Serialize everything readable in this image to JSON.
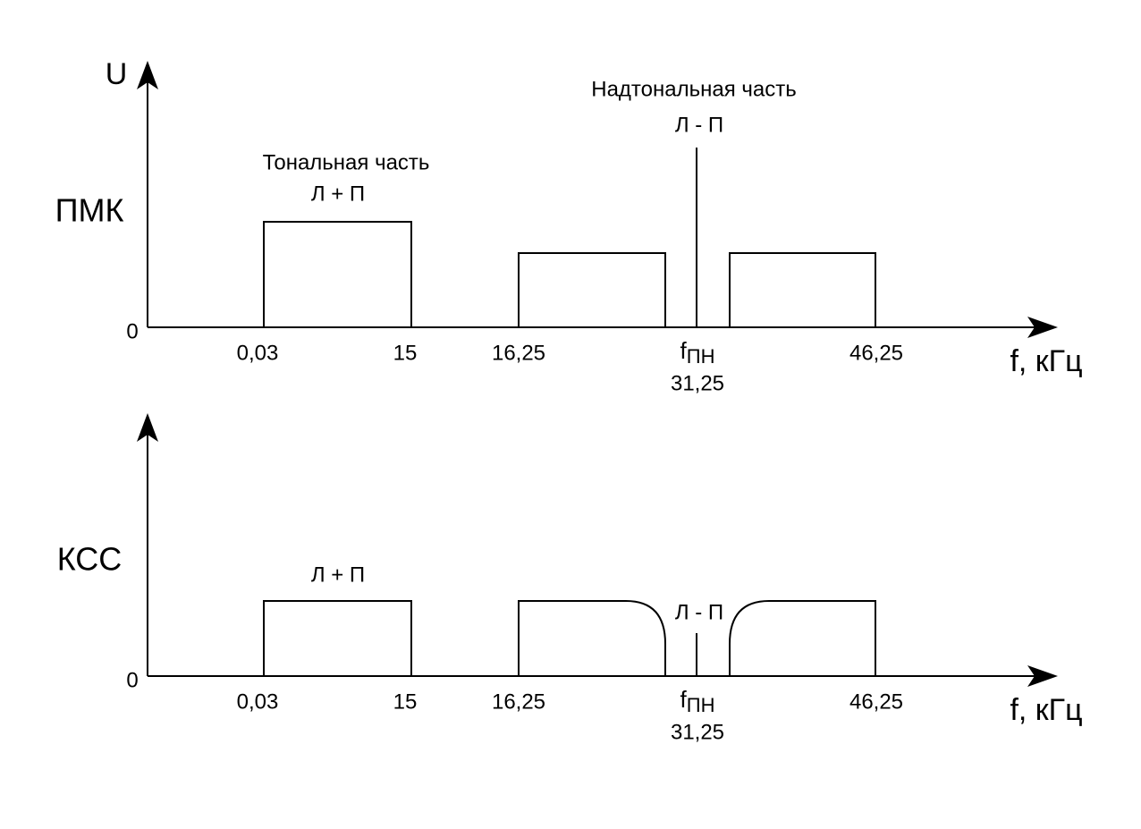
{
  "y_axis_label": "U",
  "panels": [
    {
      "label": "ПМК",
      "origin": "0",
      "x_axis_label": "f, кГц",
      "ticks": [
        "0,03",
        "15",
        "16,25",
        "46,25"
      ],
      "pilot": {
        "symbol": "f",
        "subscript": "ПН",
        "value": "31,25"
      },
      "tonal": {
        "title": "Тональная часть",
        "signal": "Л + П"
      },
      "supertonal": {
        "title": "Надтональная часть",
        "signal": "Л - П"
      }
    },
    {
      "label": "КСС",
      "origin": "0",
      "x_axis_label": "f, кГц",
      "ticks": [
        "0,03",
        "15",
        "16,25",
        "46,25"
      ],
      "pilot": {
        "symbol": "f",
        "subscript": "ПН",
        "value": "31,25"
      },
      "tonal": {
        "signal": "Л + П"
      },
      "supertonal": {
        "signal": "Л - П"
      }
    }
  ]
}
